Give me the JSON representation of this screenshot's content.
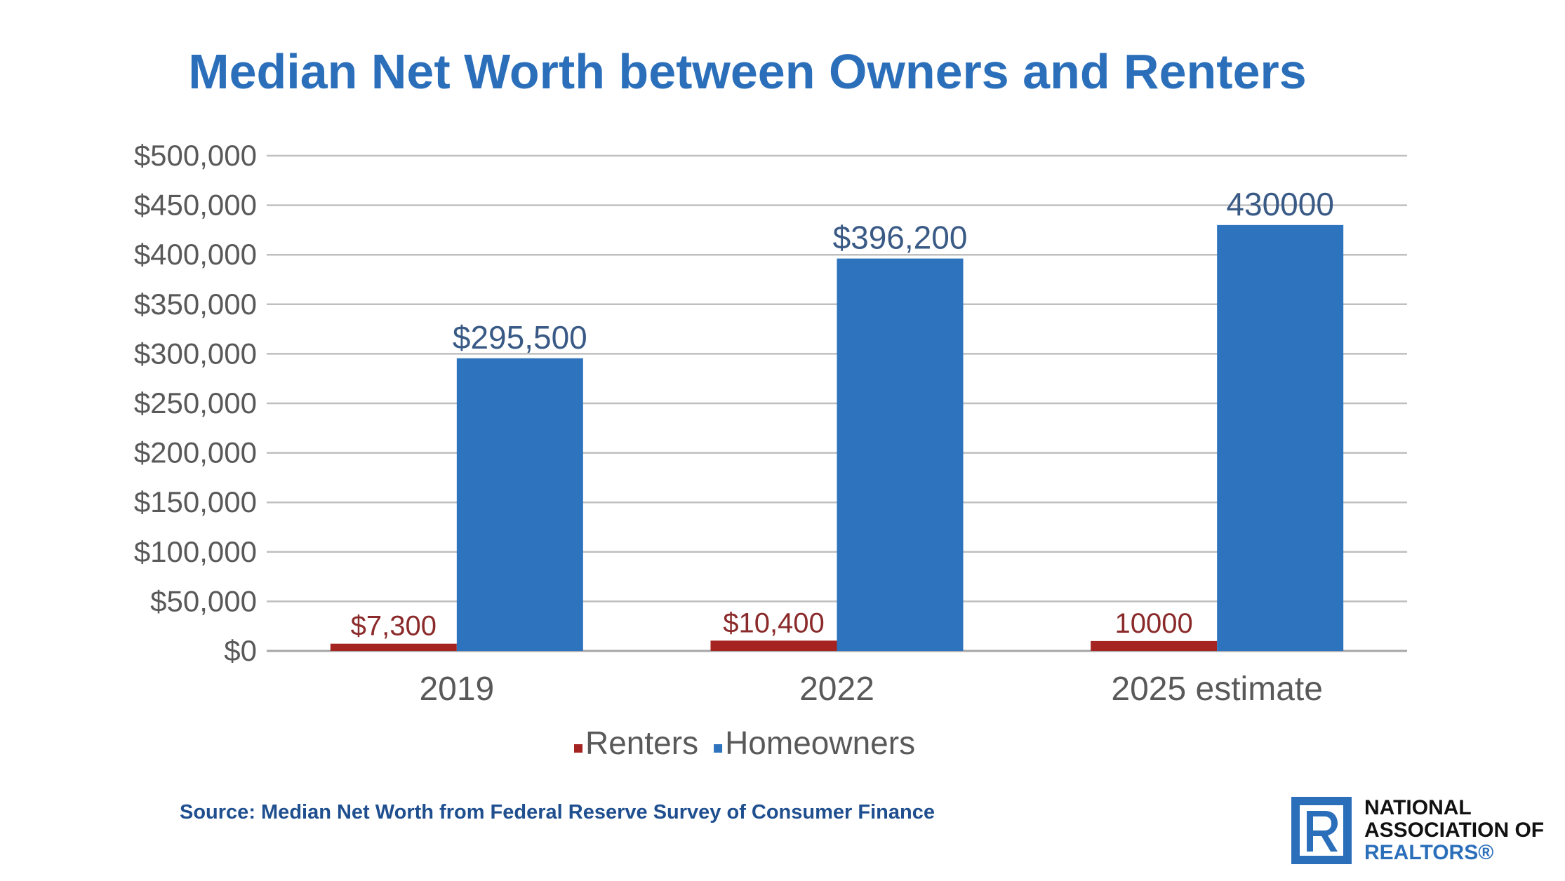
{
  "title": "Median Net Worth between Owners and Renters",
  "source": "Source: Median Net Worth from Federal Reserve Survey of Consumer Finance",
  "logo": {
    "line1": "NATIONAL",
    "line2": "ASSOCIATION OF",
    "line3": "REALTORS®",
    "mark_icon": "realtor-r-logo-icon"
  },
  "colors": {
    "title": "#2b6fba",
    "renters": "#a52321",
    "homeowners": "#2e73bd",
    "grid": "#bfbfbf"
  },
  "chart_data": {
    "type": "bar",
    "categories": [
      "2019",
      "2022",
      "2025 estimate"
    ],
    "series": [
      {
        "name": "Renters",
        "values": [
          7300,
          10400,
          10000
        ],
        "labels": [
          "$7,300",
          "$10,400",
          "10000"
        ]
      },
      {
        "name": "Homeowners",
        "values": [
          295500,
          396200,
          430000
        ],
        "labels": [
          "$295,500",
          "$396,200",
          "430000"
        ]
      }
    ],
    "ylim": [
      0,
      500000
    ],
    "yticks": [
      0,
      50000,
      100000,
      150000,
      200000,
      250000,
      300000,
      350000,
      400000,
      450000,
      500000
    ],
    "ytick_labels": [
      "$0",
      "$50,000",
      "$100,000",
      "$150,000",
      "$200,000",
      "$250,000",
      "$300,000",
      "$350,000",
      "$400,000",
      "$450,000",
      "$500,000"
    ],
    "grid": true,
    "legend_position": "bottom"
  }
}
